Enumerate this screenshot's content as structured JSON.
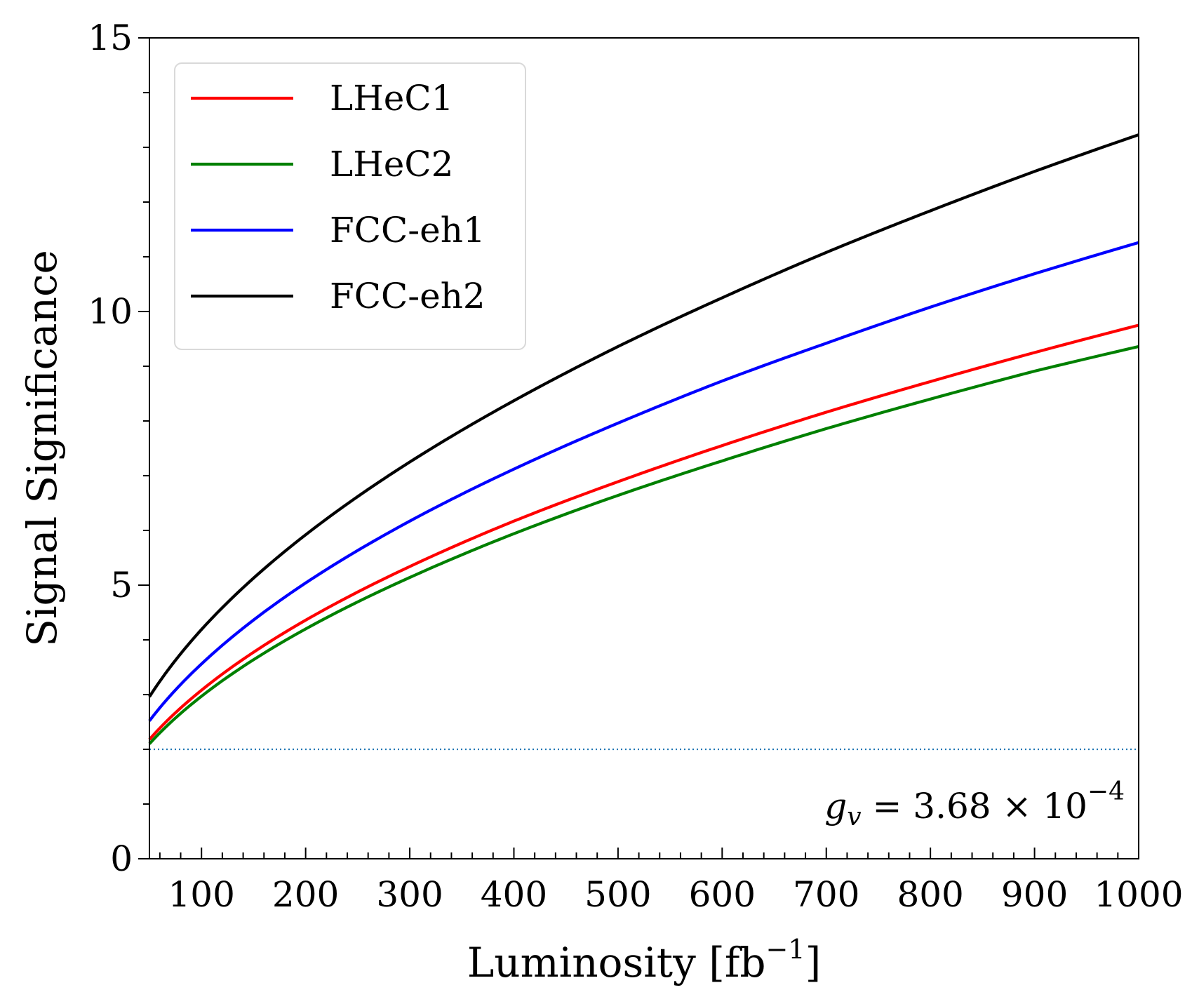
{
  "chart_data": {
    "type": "line",
    "title": "",
    "xlabel": "Luminosity [fb",
    "xlabel_sup": "−1",
    "xlabel_close": "]",
    "ylabel": "Signal Significance",
    "xlim": [
      50,
      1000
    ],
    "ylim": [
      0,
      15
    ],
    "x_ticks": [
      100,
      200,
      300,
      400,
      500,
      600,
      700,
      800,
      900,
      1000
    ],
    "x_tick_labels": [
      "100",
      "200",
      "300",
      "400",
      "500",
      "600",
      "700",
      "800",
      "900",
      "1000"
    ],
    "x_minor_step": 20,
    "y_ticks": [
      0,
      5,
      10,
      15
    ],
    "y_tick_labels": [
      "0",
      "5",
      "10",
      "15"
    ],
    "y_minor_step": 1,
    "grid": false,
    "legend_position": "top-left",
    "series": [
      {
        "name": "LHeC1",
        "color": "#ff0000",
        "x": [
          50,
          100,
          200,
          300,
          400,
          500,
          600,
          700,
          800,
          900,
          1000
        ],
        "values": [
          2.18,
          3.08,
          4.36,
          5.34,
          6.17,
          6.89,
          7.55,
          8.16,
          8.72,
          9.25,
          9.75
        ]
      },
      {
        "name": "LHeC2",
        "color": "#008000",
        "x": [
          50,
          100,
          200,
          300,
          400,
          500,
          600,
          700,
          800,
          900,
          1000
        ],
        "values": [
          2.1,
          2.97,
          4.2,
          5.14,
          5.94,
          6.64,
          7.27,
          7.86,
          8.4,
          8.91,
          9.36
        ]
      },
      {
        "name": "FCC-eh1",
        "color": "#0000ff",
        "x": [
          50,
          100,
          200,
          300,
          400,
          500,
          600,
          700,
          800,
          900,
          1000
        ],
        "values": [
          2.52,
          3.56,
          5.04,
          6.17,
          7.12,
          7.96,
          8.73,
          9.42,
          10.08,
          10.69,
          11.26
        ]
      },
      {
        "name": "FCC-eh2",
        "color": "#000000",
        "x": [
          50,
          100,
          200,
          300,
          400,
          500,
          600,
          700,
          800,
          900,
          1000
        ],
        "values": [
          2.96,
          4.19,
          5.92,
          7.25,
          8.37,
          9.36,
          10.25,
          11.08,
          11.84,
          12.56,
          13.23
        ]
      }
    ],
    "reference_line": {
      "y": 2,
      "style": "dotted",
      "color": "#1f77b4"
    },
    "annotation": {
      "text_main": "g",
      "text_sub": "v",
      "text_rest": " = 3.68 × 10",
      "text_sup": "−4"
    }
  }
}
